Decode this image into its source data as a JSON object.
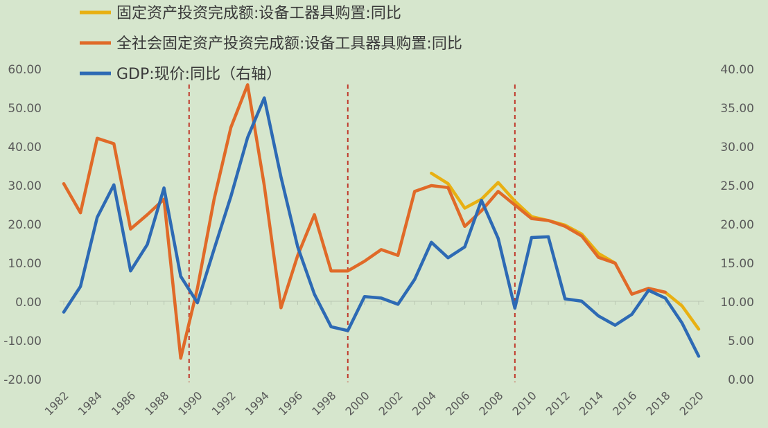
{
  "chart_data": {
    "type": "line",
    "title": "",
    "x": [
      1982,
      1983,
      1984,
      1985,
      1986,
      1987,
      1988,
      1989,
      1990,
      1991,
      1992,
      1993,
      1994,
      1995,
      1996,
      1997,
      1998,
      1999,
      2000,
      2001,
      2002,
      2003,
      2004,
      2005,
      2006,
      2007,
      2008,
      2009,
      2010,
      2011,
      2012,
      2013,
      2014,
      2015,
      2016,
      2017,
      2018,
      2019,
      2020
    ],
    "x_tick_labels": [
      "1982",
      "1984",
      "1986",
      "1988",
      "1990",
      "1992",
      "1994",
      "1996",
      "1998",
      "2000",
      "2002",
      "2004",
      "2006",
      "2008",
      "2010",
      "2012",
      "2014",
      "2016",
      "2018",
      "2020"
    ],
    "left_axis": {
      "min": -20,
      "max": 60,
      "ticks": [
        "-20.00",
        "-10.00",
        "0.00",
        "10.00",
        "20.00",
        "30.00",
        "40.00",
        "50.00",
        "60.00"
      ]
    },
    "right_axis": {
      "min": 0,
      "max": 40,
      "ticks": [
        "0.00",
        "5.00",
        "10.00",
        "15.00",
        "20.00",
        "25.00",
        "30.00",
        "35.00",
        "40.00"
      ]
    },
    "series": [
      {
        "name": "固定资产投资完成额:设备工器具购置:同比",
        "axis": "left",
        "color": "#e8b012",
        "values": [
          null,
          null,
          null,
          null,
          null,
          null,
          null,
          null,
          null,
          null,
          null,
          null,
          null,
          null,
          null,
          null,
          null,
          null,
          null,
          null,
          null,
          null,
          33.2,
          30.5,
          24.2,
          26.5,
          30.8,
          26.0,
          22.0,
          21.0,
          19.8,
          17.5,
          12.5,
          10.0,
          null,
          3.5,
          2.5,
          -1.0,
          -7.0
        ]
      },
      {
        "name": "全社会固定资产投资完成额:设备工具器具购置:同比",
        "axis": "left",
        "color": "#e06a28",
        "values": [
          30.5,
          23.0,
          42.2,
          40.8,
          18.8,
          22.5,
          26.5,
          -14.5,
          3.5,
          26.5,
          45.0,
          56.0,
          30.0,
          -1.5,
          12.0,
          22.5,
          8.0,
          8.0,
          10.5,
          13.5,
          12.0,
          28.5,
          30.0,
          29.5,
          19.5,
          23.5,
          28.5,
          25.0,
          21.5,
          21.0,
          19.5,
          17.0,
          11.5,
          10.0,
          2.0,
          3.5,
          2.5,
          null,
          null
        ]
      },
      {
        "name": "GDP:现价:同比（右轴）",
        "axis": "right",
        "color": "#2d6ab4",
        "values": [
          8.7,
          12.0,
          20.9,
          25.1,
          14.0,
          17.4,
          24.7,
          13.3,
          9.9,
          16.8,
          23.6,
          31.2,
          36.3,
          26.1,
          17.1,
          11.0,
          6.8,
          6.3,
          10.7,
          10.5,
          9.7,
          12.9,
          17.7,
          15.7,
          17.1,
          23.1,
          18.2,
          9.2,
          18.3,
          18.4,
          10.4,
          10.1,
          8.2,
          7.0,
          8.4,
          11.5,
          10.5,
          7.3,
          3.0
        ]
      }
    ],
    "annotations": [
      {
        "type": "vertical-dashed-line",
        "x": 1989.5,
        "color": "#c0392b"
      },
      {
        "type": "vertical-dashed-line",
        "x": 1999.0,
        "color": "#c0392b"
      },
      {
        "type": "vertical-dashed-line",
        "x": 2009.0,
        "color": "#c0392b"
      }
    ],
    "legend": {
      "placement": "top-center",
      "labels": [
        "固定资产投资完成额:设备工器具购置:同比",
        "全社会固定资产投资完成额:设备工具器具购置:同比",
        "GDP:现价:同比（右轴）"
      ]
    }
  }
}
